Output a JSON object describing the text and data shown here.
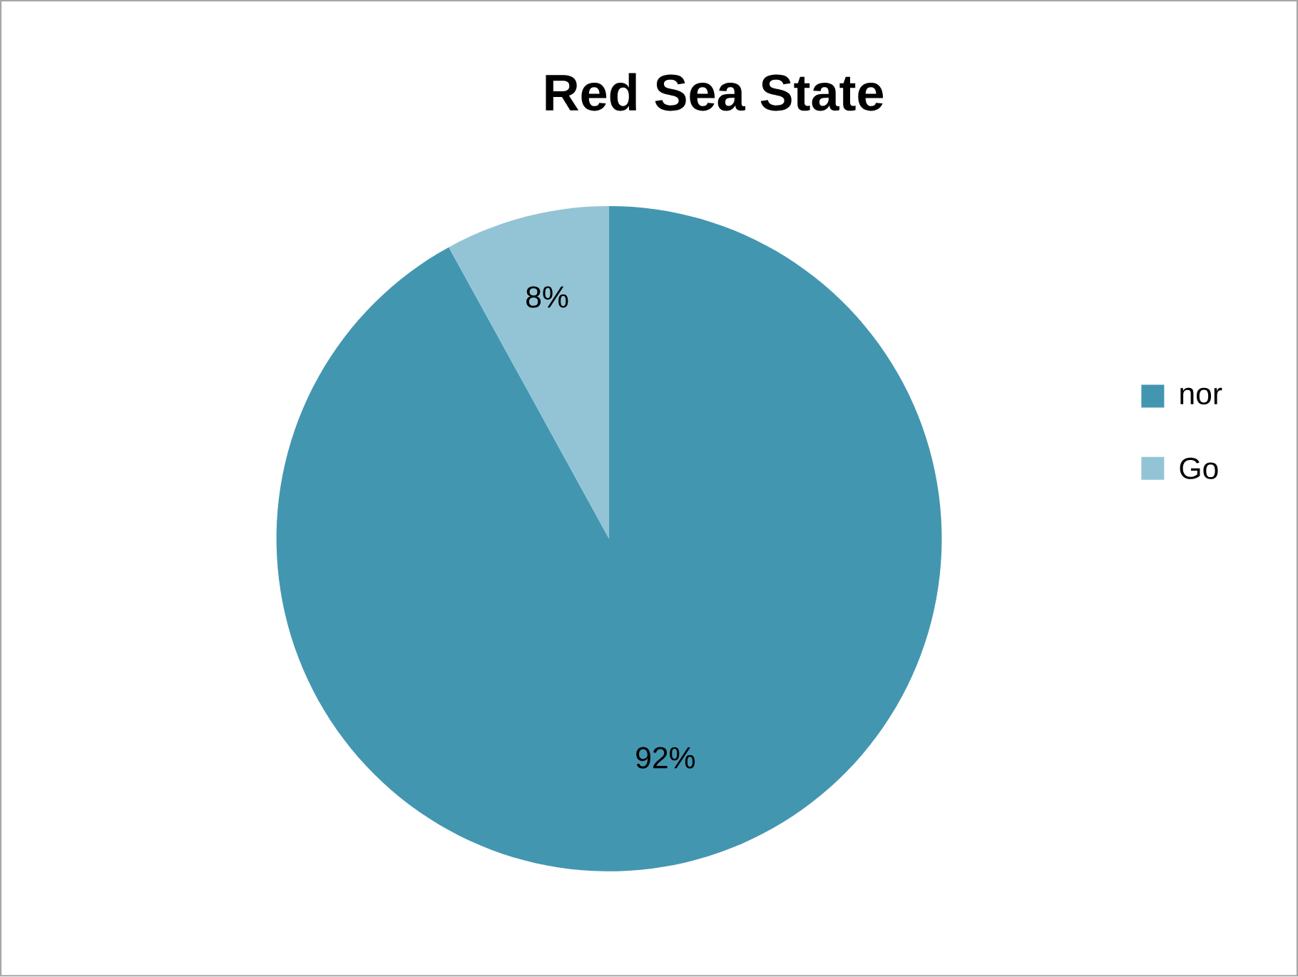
{
  "chart_data": {
    "type": "pie",
    "title": "Red Sea State",
    "categories": [
      "nor",
      "Go"
    ],
    "values": [
      92,
      8
    ],
    "colors": [
      "#4396b0",
      "#93c4d6"
    ],
    "value_labels": [
      "92%",
      "8%"
    ],
    "legend": "right"
  }
}
